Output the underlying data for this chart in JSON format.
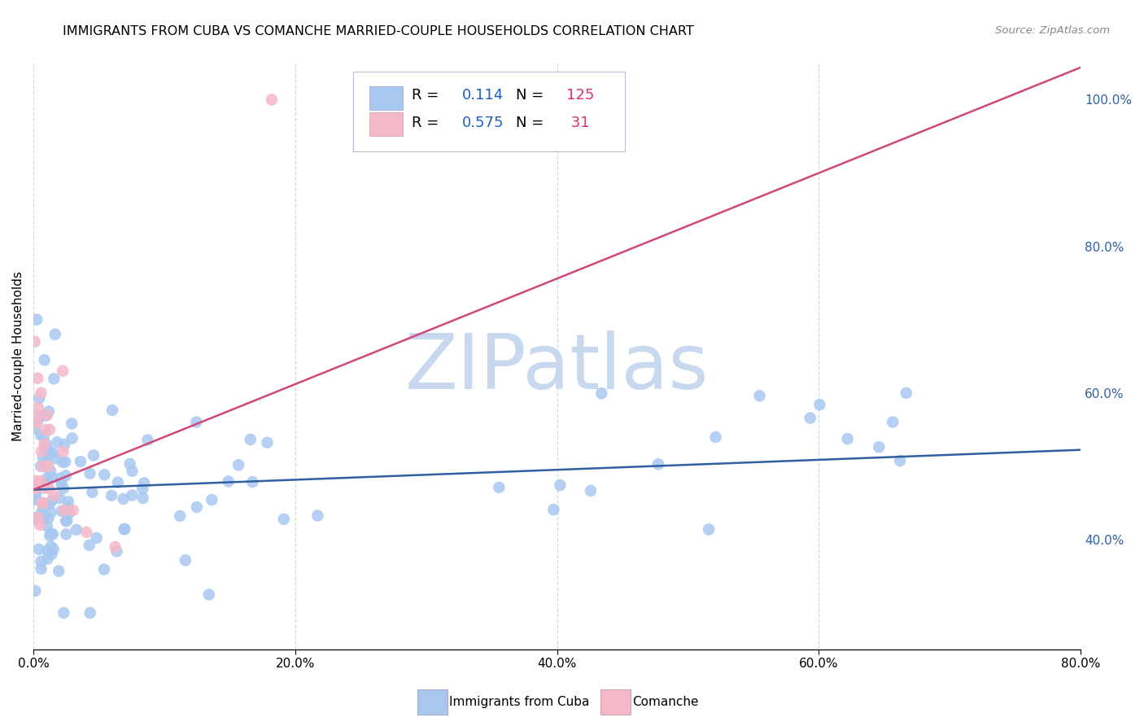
{
  "title": "IMMIGRANTS FROM CUBA VS COMANCHE MARRIED-COUPLE HOUSEHOLDS CORRELATION CHART",
  "source": "Source: ZipAtlas.com",
  "legend_bottom": [
    "Immigrants from Cuba",
    "Comanche"
  ],
  "ylabel": "Married-couple Households",
  "blue_R": 0.114,
  "blue_N": 125,
  "pink_R": 0.575,
  "pink_N": 31,
  "blue_color": "#A8C8F0",
  "pink_color": "#F5B8C8",
  "blue_line_color": "#3060A0",
  "pink_line_color": "#D04878",
  "grid_color": "#D0D8E8",
  "watermark_color": "#C8D8EE",
  "background_color": "#FFFFFF",
  "xlim": [
    0.0,
    0.8
  ],
  "ylim": [
    0.25,
    1.05
  ],
  "blue_line_intercept": 0.468,
  "blue_line_slope": 0.068,
  "pink_line_intercept": 0.468,
  "pink_line_slope": 0.72
}
